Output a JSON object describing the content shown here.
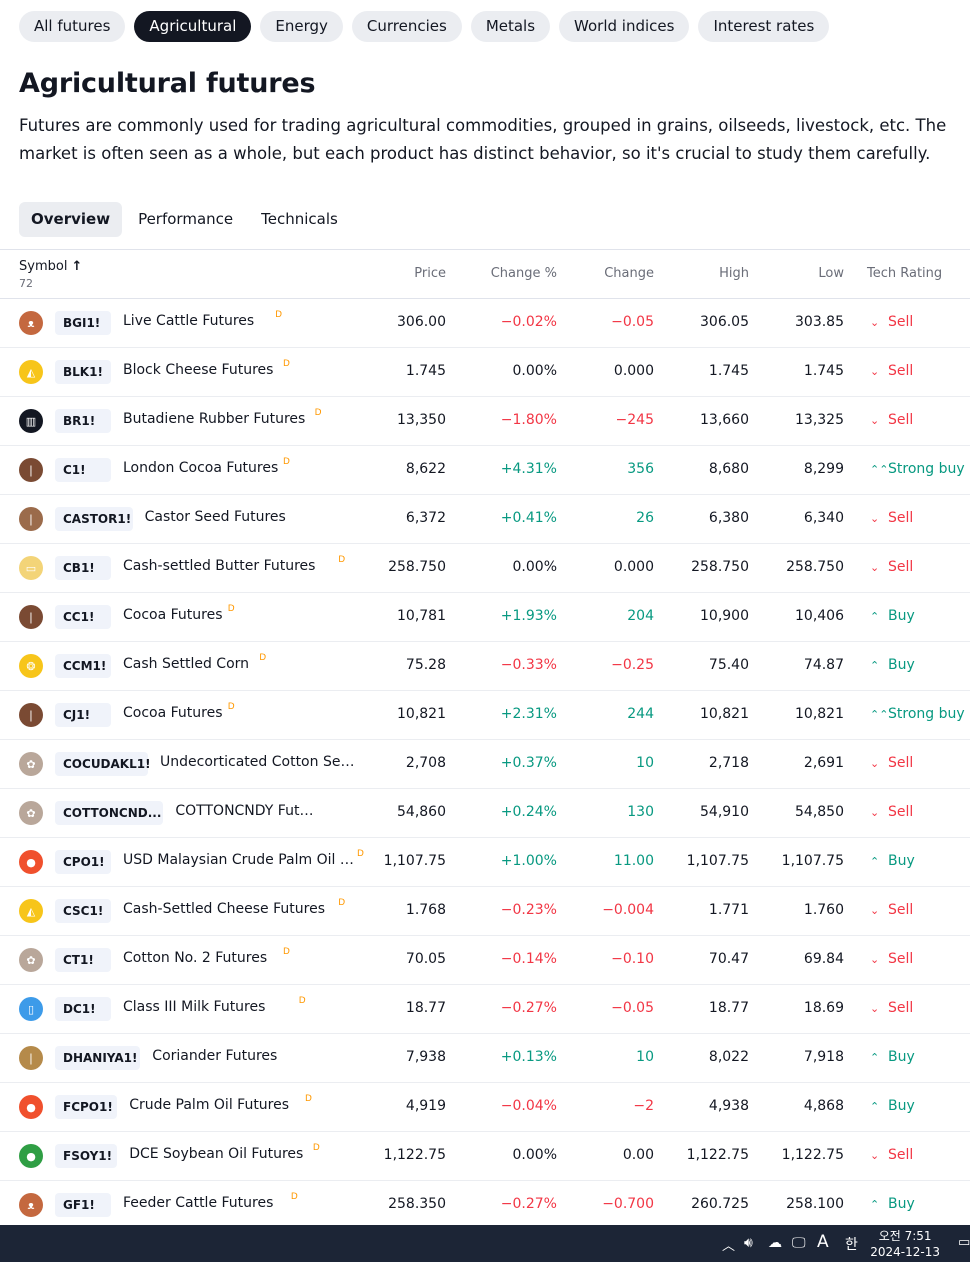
{
  "category_tabs": [
    "All futures",
    "Agricultural",
    "Energy",
    "Currencies",
    "Metals",
    "World indices",
    "Interest rates"
  ],
  "title": "Agricultural futures",
  "description": "Futures are commonly used for trading agricultural commodities, grouped in grains, oilseeds, livestock, etc. The market is often seen as a whole, but each product has distinct behavior, so it's crucial to study them carefully.",
  "sub_tabs": [
    "Overview",
    "Performance",
    "Technicals"
  ],
  "table": {
    "headers": {
      "symbol": "Symbol",
      "count": "72",
      "price": "Price",
      "change_pct": "Change %",
      "change": "Change",
      "high": "High",
      "low": "Low",
      "rating": "Tech Rating"
    },
    "rows": [
      {
        "ticker": "BGI1!",
        "name": "Live Cattle Futures",
        "sup": "D",
        "price": "306.00",
        "change_pct": "−0.02%",
        "change": "−0.05",
        "high": "306.05",
        "low": "303.85",
        "rating": "Sell",
        "rating_glyph": "⌄",
        "dir": "neg",
        "logo_color": "#c4683f",
        "logo_icon": "cow-icon"
      },
      {
        "ticker": "BLK1!",
        "name": "Block Cheese Futures",
        "sup": "D",
        "price": "1.745",
        "change_pct": "0.00%",
        "change": "0.000",
        "high": "1.745",
        "low": "1.745",
        "rating": "Sell",
        "rating_glyph": "⌄",
        "dir": "flat",
        "logo_color": "#f7c51a",
        "logo_icon": "cheese-icon"
      },
      {
        "ticker": "BR1!",
        "name": "Butadiene Rubber Futures",
        "sup": "D",
        "price": "13,350",
        "change_pct": "−1.80%",
        "change": "−245",
        "high": "13,660",
        "low": "13,325",
        "rating": "Sell",
        "rating_glyph": "⌄",
        "dir": "neg",
        "logo_color": "#131722",
        "logo_icon": "rubber-icon"
      },
      {
        "ticker": "C1!",
        "name": "London Cocoa Futures",
        "sup": "D",
        "price": "8,622",
        "change_pct": "+4.31%",
        "change": "356",
        "high": "8,680",
        "low": "8,299",
        "rating": "Strong buy",
        "rating_glyph": "⌃⌃",
        "dir": "pos",
        "logo_color": "#7a4a33",
        "logo_icon": "cocoa-icon"
      },
      {
        "ticker": "CASTOR1!",
        "name": "Castor Seed Futures",
        "sup": "",
        "price": "6,372",
        "change_pct": "+0.41%",
        "change": "26",
        "high": "6,380",
        "low": "6,340",
        "rating": "Sell",
        "rating_glyph": "⌄",
        "dir": "pos",
        "logo_color": "#9b6b4b",
        "logo_icon": "seed-icon"
      },
      {
        "ticker": "CB1!",
        "name": "Cash-settled Butter Futures",
        "sup": "D",
        "price": "258.750",
        "change_pct": "0.00%",
        "change": "0.000",
        "high": "258.750",
        "low": "258.750",
        "rating": "Sell",
        "rating_glyph": "⌄",
        "dir": "flat",
        "logo_color": "#f3d478",
        "logo_icon": "butter-icon"
      },
      {
        "ticker": "CC1!",
        "name": "Cocoa Futures",
        "sup": "D",
        "price": "10,781",
        "change_pct": "+1.93%",
        "change": "204",
        "high": "10,900",
        "low": "10,406",
        "rating": "Buy",
        "rating_glyph": "⌃",
        "dir": "pos",
        "logo_color": "#7a4a33",
        "logo_icon": "cocoa-icon"
      },
      {
        "ticker": "CCM1!",
        "name": "Cash Settled Corn",
        "sup": "D",
        "price": "75.28",
        "change_pct": "−0.33%",
        "change": "−0.25",
        "high": "75.40",
        "low": "74.87",
        "rating": "Buy",
        "rating_glyph": "⌃",
        "dir": "neg",
        "logo_color": "#f7c51a",
        "logo_icon": "corn-icon"
      },
      {
        "ticker": "CJ1!",
        "name": "Cocoa Futures",
        "sup": "D",
        "price": "10,821",
        "change_pct": "+2.31%",
        "change": "244",
        "high": "10,821",
        "low": "10,821",
        "rating": "Strong buy",
        "rating_glyph": "⌃⌃",
        "dir": "pos",
        "logo_color": "#7a4a33",
        "logo_icon": "cocoa-icon"
      },
      {
        "ticker": "COCUDAKL1!",
        "name": "Undecorticated Cotton Seed ...",
        "sup": "",
        "price": "2,708",
        "change_pct": "+0.37%",
        "change": "10",
        "high": "2,718",
        "low": "2,691",
        "rating": "Sell",
        "rating_glyph": "⌄",
        "dir": "pos",
        "logo_color": "#b9a79a",
        "logo_icon": "cotton-icon"
      },
      {
        "ticker": "COTTONCND...",
        "name": "COTTONCNDY Futures",
        "sup": "",
        "price": "54,860",
        "change_pct": "+0.24%",
        "change": "130",
        "high": "54,910",
        "low": "54,850",
        "rating": "Sell",
        "rating_glyph": "⌄",
        "dir": "pos",
        "logo_color": "#b9a79a",
        "logo_icon": "cotton-icon"
      },
      {
        "ticker": "CPO1!",
        "name": "USD Malaysian Crude Palm Oil Ca...",
        "sup": "D",
        "price": "1,107.75",
        "change_pct": "+1.00%",
        "change": "11.00",
        "high": "1,107.75",
        "low": "1,107.75",
        "rating": "Buy",
        "rating_glyph": "⌃",
        "dir": "pos",
        "logo_color": "#f0502d",
        "logo_icon": "oil-drop-icon"
      },
      {
        "ticker": "CSC1!",
        "name": "Cash-Settled Cheese Futures",
        "sup": "D",
        "price": "1.768",
        "change_pct": "−0.23%",
        "change": "−0.004",
        "high": "1.771",
        "low": "1.760",
        "rating": "Sell",
        "rating_glyph": "⌄",
        "dir": "neg",
        "logo_color": "#f7c51a",
        "logo_icon": "cheese-icon"
      },
      {
        "ticker": "CT1!",
        "name": "Cotton No. 2 Futures",
        "sup": "D",
        "price": "70.05",
        "change_pct": "−0.14%",
        "change": "−0.10",
        "high": "70.47",
        "low": "69.84",
        "rating": "Sell",
        "rating_glyph": "⌄",
        "dir": "neg",
        "logo_color": "#b9a79a",
        "logo_icon": "cotton-icon"
      },
      {
        "ticker": "DC1!",
        "name": "Class III Milk Futures",
        "sup": "D",
        "price": "18.77",
        "change_pct": "−0.27%",
        "change": "−0.05",
        "high": "18.77",
        "low": "18.69",
        "rating": "Sell",
        "rating_glyph": "⌄",
        "dir": "neg",
        "logo_color": "#3d9be9",
        "logo_icon": "milk-icon"
      },
      {
        "ticker": "DHANIYA1!",
        "name": "Coriander Futures",
        "sup": "",
        "price": "7,938",
        "change_pct": "+0.13%",
        "change": "10",
        "high": "8,022",
        "low": "7,918",
        "rating": "Buy",
        "rating_glyph": "⌃",
        "dir": "pos",
        "logo_color": "#b58a4a",
        "logo_icon": "seed-icon"
      },
      {
        "ticker": "FCPO1!",
        "name": "Crude Palm Oil Futures",
        "sup": "D",
        "price": "4,919",
        "change_pct": "−0.04%",
        "change": "−2",
        "high": "4,938",
        "low": "4,868",
        "rating": "Buy",
        "rating_glyph": "⌃",
        "dir": "neg",
        "logo_color": "#f0502d",
        "logo_icon": "oil-drop-icon"
      },
      {
        "ticker": "FSOY1!",
        "name": "DCE Soybean Oil Futures",
        "sup": "D",
        "price": "1,122.75",
        "change_pct": "0.00%",
        "change": "0.00",
        "high": "1,122.75",
        "low": "1,122.75",
        "rating": "Sell",
        "rating_glyph": "⌄",
        "dir": "flat",
        "logo_color": "#2f9e44",
        "logo_icon": "soy-drop-icon"
      },
      {
        "ticker": "GF1!",
        "name": "Feeder Cattle Futures",
        "sup": "D",
        "price": "258.350",
        "change_pct": "−0.27%",
        "change": "−0.700",
        "high": "260.725",
        "low": "258.100",
        "rating": "Buy",
        "rating_glyph": "⌃",
        "dir": "neg",
        "logo_color": "#c4683f",
        "logo_icon": "cow-icon"
      }
    ]
  },
  "taskbar": {
    "ime": "A",
    "ime2": "한",
    "time": "오전 7:51",
    "date": "2024-12-13"
  }
}
